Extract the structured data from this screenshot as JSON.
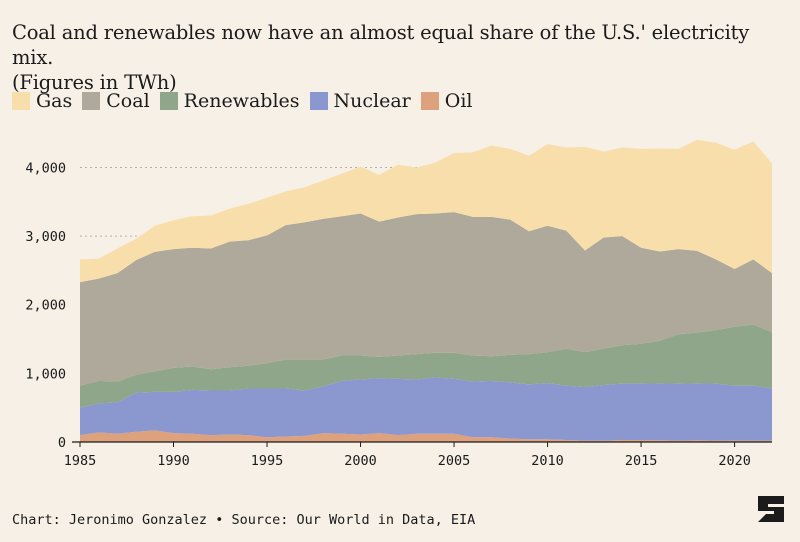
{
  "chart_data": {
    "type": "area",
    "stacked": true,
    "title": "Coal and renewables now have an almost equal share of the U.S.' electricity mix. (Figures in TWh)",
    "xlim": [
      1985,
      2022
    ],
    "ylim": [
      0,
      4400
    ],
    "x_ticks": [
      1985,
      1990,
      1995,
      2000,
      2005,
      2010,
      2015,
      2020
    ],
    "y_ticks": [
      0,
      1000,
      2000,
      3000,
      4000
    ],
    "y_tick_labels": [
      "0",
      "1,000",
      "2,000",
      "3,000",
      "4,000"
    ],
    "grid": "horizontal dotted",
    "legend_position": "top-left",
    "x": [
      1985,
      1986,
      1987,
      1988,
      1989,
      1990,
      1991,
      1992,
      1993,
      1994,
      1995,
      1996,
      1997,
      1998,
      1999,
      2000,
      2001,
      2002,
      2003,
      2004,
      2005,
      2006,
      2007,
      2008,
      2009,
      2010,
      2011,
      2012,
      2013,
      2014,
      2015,
      2016,
      2017,
      2018,
      2019,
      2020,
      2021,
      2022
    ],
    "series": [
      {
        "name": "Oil",
        "color": "#dea17d",
        "values": [
          100,
          140,
          120,
          150,
          170,
          130,
          120,
          100,
          110,
          100,
          70,
          80,
          90,
          130,
          120,
          110,
          130,
          100,
          120,
          120,
          120,
          70,
          70,
          50,
          40,
          40,
          30,
          20,
          20,
          30,
          30,
          25,
          20,
          25,
          20,
          20,
          20,
          20
        ]
      },
      {
        "name": "Nuclear",
        "color": "#8b97cf",
        "values": [
          400,
          420,
          460,
          570,
          560,
          600,
          640,
          650,
          640,
          680,
          710,
          700,
          660,
          680,
          770,
          800,
          800,
          820,
          790,
          820,
          800,
          810,
          820,
          820,
          800,
          820,
          790,
          780,
          810,
          820,
          820,
          830,
          830,
          830,
          830,
          800,
          800,
          760
        ]
      },
      {
        "name": "Renewables",
        "color": "#8fa68a",
        "values": [
          320,
          330,
          300,
          260,
          300,
          350,
          340,
          310,
          340,
          330,
          370,
          420,
          450,
          390,
          370,
          350,
          310,
          340,
          370,
          360,
          380,
          380,
          360,
          400,
          440,
          450,
          540,
          510,
          530,
          560,
          580,
          620,
          720,
          740,
          780,
          860,
          890,
          820
        ]
      },
      {
        "name": "Coal",
        "color": "#aea99a",
        "values": [
          1510,
          1490,
          1580,
          1670,
          1740,
          1730,
          1730,
          1760,
          1830,
          1830,
          1860,
          1960,
          2000,
          2050,
          2030,
          2070,
          1970,
          2010,
          2040,
          2030,
          2050,
          2020,
          2030,
          1970,
          1790,
          1840,
          1720,
          1480,
          1620,
          1590,
          1400,
          1300,
          1240,
          1190,
          1030,
          840,
          950,
          860
        ]
      },
      {
        "name": "Gas",
        "color": "#f8deab",
        "values": [
          330,
          290,
          360,
          310,
          380,
          420,
          460,
          480,
          480,
          530,
          550,
          490,
          510,
          560,
          620,
          680,
          680,
          770,
          680,
          740,
          860,
          940,
          1040,
          1030,
          1100,
          1190,
          1210,
          1510,
          1250,
          1290,
          1440,
          1500,
          1460,
          1620,
          1700,
          1740,
          1720,
          1600
        ]
      }
    ]
  },
  "legend": [
    {
      "name": "Gas",
      "color": "#f8deab"
    },
    {
      "name": "Coal",
      "color": "#aea99a"
    },
    {
      "name": "Renewables",
      "color": "#8fa68a"
    },
    {
      "name": "Nuclear",
      "color": "#8b97cf"
    },
    {
      "name": "Oil",
      "color": "#dea17d"
    }
  ],
  "title_line1": "Coal and renewables now have an almost equal share of the U.S.' electricity mix.",
  "title_line2": "(Figures in TWh)",
  "footer": "Chart: Jeronimo Gonzalez • Source: Our World in Data, EIA",
  "logo_icon": "s-logo-icon"
}
